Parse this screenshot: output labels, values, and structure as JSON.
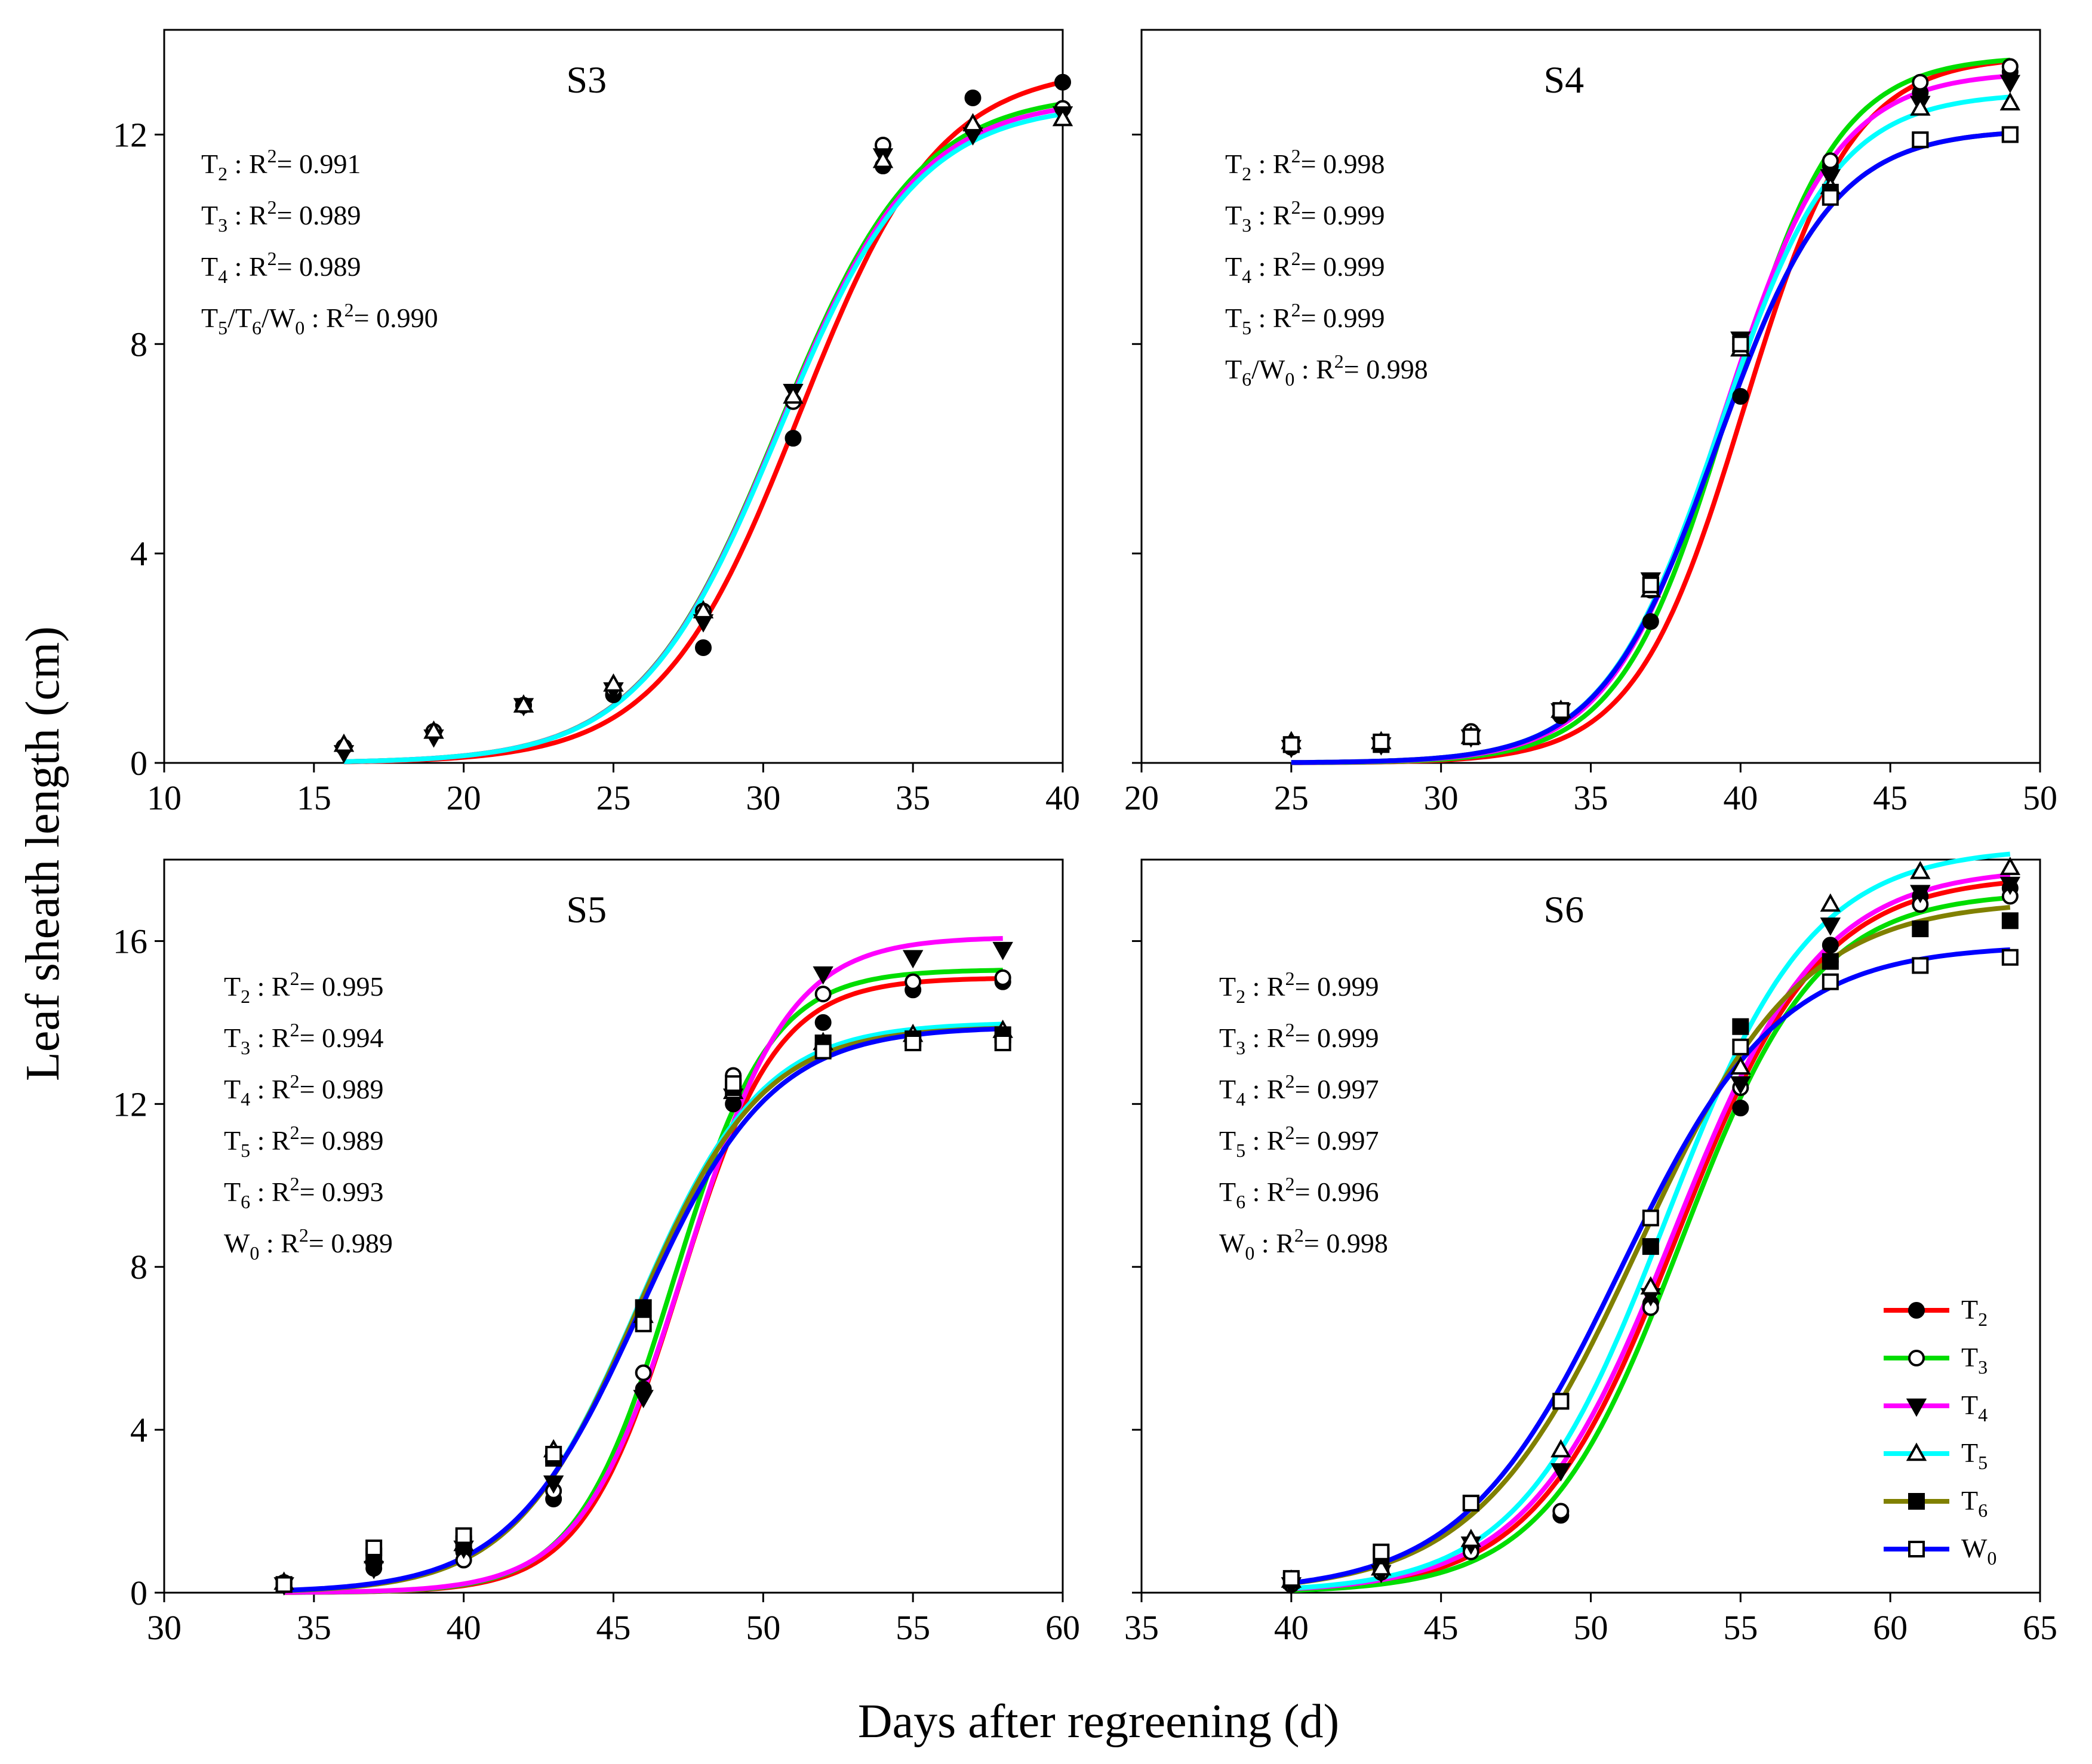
{
  "figure": {
    "ylabel": "Leaf sheath length (cm)",
    "xlabel": "Days after regreening (d)"
  },
  "legend": {
    "items": [
      {
        "key": "T2",
        "base": "T",
        "sub": "2",
        "color": "#ff0000",
        "marker": "circle-filled"
      },
      {
        "key": "T3",
        "base": "T",
        "sub": "3",
        "color": "#00dd00",
        "marker": "circle-open"
      },
      {
        "key": "T4",
        "base": "T",
        "sub": "4",
        "color": "#ff00ff",
        "marker": "triangle-down-filled"
      },
      {
        "key": "T5",
        "base": "T",
        "sub": "5",
        "color": "#00ffff",
        "marker": "triangle-up-open"
      },
      {
        "key": "T6",
        "base": "T",
        "sub": "6",
        "color": "#808000",
        "marker": "square-filled"
      },
      {
        "key": "W0",
        "base": "W",
        "sub": "0",
        "color": "#0000ff",
        "marker": "square-open"
      }
    ]
  },
  "chart_data": [
    {
      "type": "scatter",
      "title": "S3",
      "xlim": [
        10,
        40
      ],
      "ylim": [
        0,
        14
      ],
      "xticks": [
        10,
        15,
        20,
        25,
        30,
        35,
        40
      ],
      "yticks": [
        0,
        4,
        8,
        12
      ],
      "annotations": [
        {
          "label": "T",
          "sub": "2",
          "r2": "0.991"
        },
        {
          "label": "T",
          "sub": "3",
          "r2": "0.989"
        },
        {
          "label": "T",
          "sub": "4",
          "r2": "0.989"
        },
        {
          "label": "T",
          "sub": "5",
          "label2": "/T",
          "sub2": "6",
          "label3": "/W",
          "sub3": "0",
          "r2": "0.990"
        }
      ],
      "series": [
        {
          "name": "T2",
          "x": [
            16,
            19,
            22,
            25,
            28,
            31,
            34,
            37,
            40
          ],
          "y": [
            0.3,
            0.6,
            1.1,
            1.3,
            2.2,
            6.2,
            11.4,
            12.7,
            13.0
          ],
          "fit": {
            "a": 13.3,
            "x0": 31.2,
            "k": 0.43,
            "x_start": 16,
            "x_end": 40
          }
        },
        {
          "name": "T3",
          "x": [
            16,
            19,
            22,
            25,
            28,
            31,
            34,
            37,
            40
          ],
          "y": [
            0.3,
            0.6,
            1.1,
            1.4,
            2.9,
            6.9,
            11.8,
            12.1,
            12.5
          ],
          "fit": {
            "a": 12.8,
            "x0": 30.5,
            "k": 0.43,
            "x_start": 16,
            "x_end": 40
          }
        },
        {
          "name": "T4",
          "x": [
            16,
            19,
            22,
            25,
            28,
            31,
            34,
            37,
            40
          ],
          "y": [
            0.2,
            0.5,
            1.1,
            1.4,
            2.7,
            7.1,
            11.6,
            12.0,
            12.4
          ],
          "fit": {
            "a": 12.7,
            "x0": 30.5,
            "k": 0.43,
            "x_start": 16,
            "x_end": 40
          }
        },
        {
          "name": "T5",
          "x": [
            16,
            19,
            22,
            25,
            28,
            31,
            34,
            37,
            40
          ],
          "y": [
            0.35,
            0.6,
            1.1,
            1.5,
            2.9,
            7.0,
            11.5,
            12.2,
            12.3
          ],
          "fit": {
            "a": 12.6,
            "x0": 30.5,
            "k": 0.43,
            "x_start": 16,
            "x_end": 40
          }
        }
      ]
    },
    {
      "type": "scatter",
      "title": "S4",
      "xlim": [
        20,
        50
      ],
      "ylim": [
        0,
        14
      ],
      "xticks": [
        20,
        25,
        30,
        35,
        40,
        45,
        50
      ],
      "yticks": [
        0,
        4,
        8,
        12
      ],
      "annotations": [
        {
          "label": "T",
          "sub": "2",
          "r2": "0.998"
        },
        {
          "label": "T",
          "sub": "3",
          "r2": "0.999"
        },
        {
          "label": "T",
          "sub": "4",
          "r2": "0.999"
        },
        {
          "label": "T",
          "sub": "5",
          "r2": "0.999"
        },
        {
          "label": "T",
          "sub": "6",
          "label2": "/W",
          "sub2": "0",
          "r2": "0.998"
        }
      ],
      "series": [
        {
          "name": "T2",
          "x": [
            25,
            28,
            31,
            34,
            37,
            40,
            43,
            46,
            49
          ],
          "y": [
            0.3,
            0.4,
            0.6,
            0.9,
            2.7,
            7.0,
            11.4,
            12.8,
            13.2
          ],
          "fit": {
            "a": 13.5,
            "x0": 40.1,
            "k": 0.55,
            "x_start": 25,
            "x_end": 49
          }
        },
        {
          "name": "T3",
          "x": [
            25,
            28,
            31,
            34,
            37,
            40,
            43,
            46,
            49
          ],
          "y": [
            0.35,
            0.4,
            0.6,
            1.0,
            3.3,
            8.0,
            11.5,
            13.0,
            13.3
          ],
          "fit": {
            "a": 13.5,
            "x0": 39.6,
            "k": 0.55,
            "x_start": 25,
            "x_end": 49
          }
        },
        {
          "name": "T4",
          "x": [
            25,
            28,
            31,
            34,
            37,
            40,
            43,
            46,
            49
          ],
          "y": [
            0.3,
            0.35,
            0.5,
            1.0,
            3.5,
            8.1,
            11.2,
            12.6,
            13.0
          ],
          "fit": {
            "a": 13.2,
            "x0": 39.4,
            "k": 0.53,
            "x_start": 25,
            "x_end": 49
          }
        },
        {
          "name": "T5",
          "x": [
            25,
            28,
            31,
            34,
            37,
            40,
            43,
            46,
            49
          ],
          "y": [
            0.4,
            0.4,
            0.5,
            1.0,
            3.3,
            7.9,
            11.0,
            12.5,
            12.6
          ],
          "fit": {
            "a": 12.8,
            "x0": 39.3,
            "k": 0.52,
            "x_start": 25,
            "x_end": 49
          }
        },
        {
          "name": "T6",
          "x": [
            25,
            28,
            31,
            34,
            37,
            40,
            43,
            46,
            49
          ],
          "y": [
            0.35,
            0.35,
            0.5,
            1.0,
            3.4,
            8.0,
            10.9,
            11.9,
            12.0
          ],
          "fit": {
            "a": 12.1,
            "x0": 39.2,
            "k": 0.52,
            "x_start": 25,
            "x_end": 49
          }
        },
        {
          "name": "W0",
          "x": [
            25,
            28,
            31,
            34,
            37,
            40,
            43,
            46,
            49
          ],
          "y": [
            0.35,
            0.4,
            0.5,
            1.0,
            3.4,
            8.0,
            10.8,
            11.9,
            12.0
          ],
          "fit": {
            "a": 12.1,
            "x0": 39.2,
            "k": 0.52,
            "x_start": 25,
            "x_end": 49
          }
        }
      ]
    },
    {
      "type": "scatter",
      "title": "S5",
      "xlim": [
        30,
        60
      ],
      "ylim": [
        0,
        18
      ],
      "xticks": [
        30,
        35,
        40,
        45,
        50,
        55,
        60
      ],
      "yticks": [
        0,
        4,
        8,
        12,
        16
      ],
      "annotations": [
        {
          "label": "T",
          "sub": "2",
          "r2": "0.995"
        },
        {
          "label": "T",
          "sub": "3",
          "r2": "0.994"
        },
        {
          "label": "T",
          "sub": "4",
          "r2": "0.989"
        },
        {
          "label": "T",
          "sub": "5",
          "r2": "0.989"
        },
        {
          "label": "T",
          "sub": "6",
          "r2": "0.993"
        },
        {
          "label": "W",
          "sub": "0",
          "r2": "0.989"
        }
      ],
      "series": [
        {
          "name": "T2",
          "x": [
            34,
            37,
            40,
            43,
            46,
            49,
            52,
            55,
            58
          ],
          "y": [
            0.2,
            0.6,
            1.0,
            2.3,
            5.0,
            12.0,
            14.0,
            14.8,
            15.0
          ],
          "fit": {
            "a": 15.1,
            "x0": 47.2,
            "k": 0.62,
            "x_start": 34,
            "x_end": 58
          }
        },
        {
          "name": "T3",
          "x": [
            34,
            37,
            40,
            43,
            46,
            49,
            52,
            55,
            58
          ],
          "y": [
            0.25,
            0.7,
            0.8,
            2.5,
            5.4,
            12.7,
            14.7,
            15.0,
            15.1
          ],
          "fit": {
            "a": 15.3,
            "x0": 47.0,
            "k": 0.62,
            "x_start": 34,
            "x_end": 58
          }
        },
        {
          "name": "T4",
          "x": [
            34,
            37,
            40,
            43,
            46,
            49,
            52,
            55,
            58
          ],
          "y": [
            0.2,
            0.6,
            1.1,
            2.7,
            4.8,
            12.2,
            15.2,
            15.6,
            15.8
          ],
          "fit": {
            "a": 16.1,
            "x0": 47.4,
            "k": 0.58,
            "x_start": 34,
            "x_end": 58
          }
        },
        {
          "name": "T5",
          "x": [
            34,
            37,
            40,
            43,
            46,
            49,
            52,
            55,
            58
          ],
          "y": [
            0.25,
            0.9,
            1.2,
            3.5,
            6.8,
            12.3,
            13.5,
            13.7,
            13.8
          ],
          "fit": {
            "a": 14.0,
            "x0": 45.8,
            "k": 0.48,
            "x_start": 34,
            "x_end": 58
          }
        },
        {
          "name": "T6",
          "x": [
            34,
            37,
            40,
            43,
            46,
            49,
            52,
            55,
            58
          ],
          "y": [
            0.2,
            0.9,
            1.2,
            3.3,
            7.0,
            12.4,
            13.5,
            13.6,
            13.7
          ],
          "fit": {
            "a": 13.9,
            "x0": 45.8,
            "k": 0.48,
            "x_start": 34,
            "x_end": 58
          }
        },
        {
          "name": "W0",
          "x": [
            34,
            37,
            40,
            43,
            46,
            49,
            52,
            55,
            58
          ],
          "y": [
            0.2,
            1.1,
            1.4,
            3.4,
            6.6,
            12.5,
            13.3,
            13.5,
            13.5
          ],
          "fit": {
            "a": 13.9,
            "x0": 45.9,
            "k": 0.46,
            "x_start": 34,
            "x_end": 58
          }
        }
      ]
    },
    {
      "type": "scatter",
      "title": "S6",
      "xlim": [
        35,
        65
      ],
      "ylim": [
        0,
        18
      ],
      "xticks": [
        35,
        40,
        45,
        50,
        55,
        60,
        65
      ],
      "yticks": [
        0,
        4,
        8,
        12,
        16
      ],
      "annotations": [
        {
          "label": "T",
          "sub": "2",
          "r2": "0.999"
        },
        {
          "label": "T",
          "sub": "3",
          "r2": "0.999"
        },
        {
          "label": "T",
          "sub": "4",
          "r2": "0.997"
        },
        {
          "label": "T",
          "sub": "5",
          "r2": "0.997"
        },
        {
          "label": "T",
          "sub": "6",
          "r2": "0.996"
        },
        {
          "label": "W",
          "sub": "0",
          "r2": "0.998"
        }
      ],
      "series": [
        {
          "name": "T2",
          "x": [
            40,
            43,
            46,
            49,
            52,
            55,
            58,
            61,
            64
          ],
          "y": [
            0.2,
            0.6,
            1.1,
            1.9,
            7.1,
            11.9,
            15.9,
            17.1,
            17.3
          ],
          "fit": {
            "a": 17.6,
            "x0": 52.9,
            "k": 0.42,
            "x_start": 40,
            "x_end": 64
          }
        },
        {
          "name": "T3",
          "x": [
            40,
            43,
            46,
            49,
            52,
            55,
            58,
            61,
            64
          ],
          "y": [
            0.2,
            0.5,
            1.0,
            2.0,
            7.0,
            12.4,
            15.5,
            16.9,
            17.1
          ],
          "fit": {
            "a": 17.2,
            "x0": 53.0,
            "k": 0.44,
            "x_start": 40,
            "x_end": 64
          }
        },
        {
          "name": "T4",
          "x": [
            40,
            43,
            46,
            49,
            52,
            55,
            58,
            61,
            64
          ],
          "y": [
            0.2,
            0.5,
            1.2,
            3.0,
            7.3,
            12.5,
            16.4,
            17.2,
            17.4
          ],
          "fit": {
            "a": 17.8,
            "x0": 52.8,
            "k": 0.41,
            "x_start": 40,
            "x_end": 64
          }
        },
        {
          "name": "T5",
          "x": [
            40,
            43,
            46,
            49,
            52,
            55,
            58,
            61,
            64
          ],
          "y": [
            0.3,
            0.6,
            1.3,
            3.5,
            7.5,
            12.9,
            16.9,
            17.7,
            17.8
          ],
          "fit": {
            "a": 18.3,
            "x0": 52.5,
            "k": 0.41,
            "x_start": 40,
            "x_end": 64
          }
        },
        {
          "name": "T6",
          "x": [
            40,
            43,
            46,
            49,
            52,
            55,
            58,
            61,
            64
          ],
          "y": [
            0.3,
            0.9,
            2.2,
            4.7,
            8.5,
            13.9,
            15.5,
            16.3,
            16.5
          ],
          "fit": {
            "a": 17.0,
            "x0": 51.6,
            "k": 0.37,
            "x_start": 40,
            "x_end": 64
          }
        },
        {
          "name": "W0",
          "x": [
            40,
            43,
            46,
            49,
            52,
            55,
            58,
            61,
            64
          ],
          "y": [
            0.35,
            1.0,
            2.2,
            4.7,
            9.2,
            13.4,
            15.0,
            15.4,
            15.6
          ],
          "fit": {
            "a": 15.9,
            "x0": 51.0,
            "k": 0.38,
            "x_start": 40,
            "x_end": 64
          }
        }
      ]
    }
  ]
}
